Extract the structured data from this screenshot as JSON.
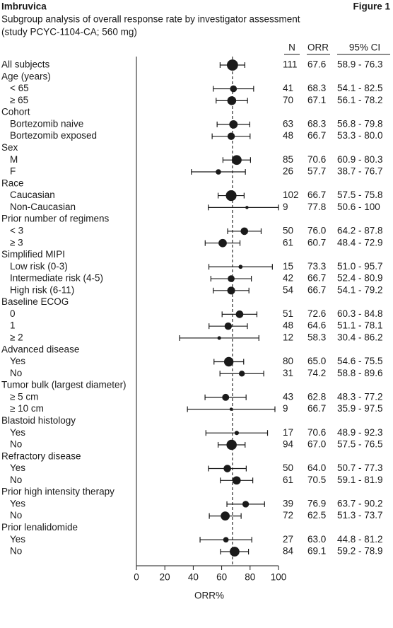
{
  "chart_data": {
    "type": "forest",
    "brand": "Imbruvica",
    "figure_label": "Figure 1",
    "title": "Subgroup analysis of overall response rate by investigator assessment",
    "subtitle": "(study PCYC-1104-CA; 560 mg)",
    "columns": [
      "N",
      "ORR",
      "95% CI"
    ],
    "x_label": "ORR%",
    "xlim": [
      0,
      100
    ],
    "xticks": [
      0,
      20,
      40,
      60,
      80,
      100
    ],
    "reference_line": 67.6,
    "color": "#1a1a1a",
    "categories": [
      "All subjects",
      "Age (years)",
      "< 65",
      "≥ 65",
      "Cohort",
      "Bortezomib naive",
      "Bortezomib exposed",
      "Sex",
      "M",
      "F",
      "Race",
      "Caucasian",
      "Non-Caucasian",
      "Prior number of regimens",
      "< 3",
      "≥ 3",
      "Simplified MIPI",
      "Low risk (0-3)",
      "Intermediate risk (4-5)",
      "High risk (6-11)",
      "Baseline ECOG",
      "0",
      "1",
      "≥ 2",
      "Advanced disease",
      "Yes",
      "No",
      "Tumor bulk (largest diameter)",
      "≥ 5 cm",
      "≥ 10 cm",
      "Blastoid histology",
      "Yes",
      "No",
      "Refractory disease",
      "Yes",
      "No",
      "Prior high intensity therapy",
      "Yes",
      "No",
      "Prior lenalidomide",
      "Yes",
      "No"
    ],
    "n": [
      111,
      null,
      41,
      70,
      null,
      63,
      48,
      null,
      85,
      26,
      null,
      102,
      9,
      null,
      50,
      61,
      null,
      15,
      42,
      54,
      null,
      51,
      48,
      12,
      null,
      80,
      31,
      null,
      43,
      9,
      null,
      17,
      94,
      null,
      50,
      61,
      null,
      39,
      72,
      null,
      27,
      84
    ],
    "values": [
      67.6,
      null,
      68.3,
      67.1,
      null,
      68.3,
      66.7,
      null,
      70.6,
      57.7,
      null,
      66.7,
      77.8,
      null,
      76.0,
      60.7,
      null,
      73.3,
      66.7,
      66.7,
      null,
      72.6,
      64.6,
      58.3,
      null,
      65.0,
      74.2,
      null,
      62.8,
      66.7,
      null,
      70.6,
      67.0,
      null,
      64.0,
      70.5,
      null,
      76.9,
      62.5,
      null,
      63.0,
      69.1
    ],
    "value_labels": [
      "67.6",
      null,
      "68.3",
      "67.1",
      null,
      "68.3",
      "66.7",
      null,
      "70.6",
      "57.7",
      null,
      "66.7",
      "77.8",
      null,
      "76.0",
      "60.7",
      null,
      "73.3",
      "66.7",
      "66.7",
      null,
      "72.6",
      "64.6",
      "58.3",
      null,
      "65.0",
      "74.2",
      null,
      "62.8",
      "66.7",
      null,
      "70.6",
      "67.0",
      null,
      "64.0",
      "70.5",
      null,
      "76.9",
      "62.5",
      null,
      "63.0",
      "69.1"
    ],
    "ci_low": [
      58.9,
      null,
      54.1,
      56.1,
      null,
      56.8,
      53.3,
      null,
      60.9,
      38.7,
      null,
      57.5,
      50.6,
      null,
      64.2,
      48.4,
      null,
      51.0,
      52.4,
      54.1,
      null,
      60.3,
      51.1,
      30.4,
      null,
      54.6,
      58.8,
      null,
      48.3,
      35.9,
      null,
      48.9,
      57.5,
      null,
      50.7,
      59.1,
      null,
      63.7,
      51.3,
      null,
      44.8,
      59.2
    ],
    "ci_high": [
      76.3,
      null,
      82.5,
      78.2,
      null,
      79.8,
      80.0,
      null,
      80.3,
      76.7,
      null,
      75.8,
      100,
      null,
      87.8,
      72.9,
      null,
      95.7,
      80.9,
      79.2,
      null,
      84.8,
      78.1,
      86.2,
      null,
      75.5,
      89.6,
      null,
      77.2,
      97.5,
      null,
      92.3,
      76.5,
      null,
      77.3,
      81.9,
      null,
      90.2,
      73.7,
      null,
      81.2,
      78.9
    ],
    "ci_labels": [
      "58.9 - 76.3",
      null,
      "54.1 - 82.5",
      "56.1 - 78.2",
      null,
      "56.8 - 79.8",
      "53.3 - 80.0",
      null,
      "60.9 - 80.3",
      "38.7 - 76.7",
      null,
      "57.5 - 75.8",
      "50.6 - 100",
      null,
      "64.2 - 87.8",
      "48.4 - 72.9",
      null,
      "51.0 - 95.7",
      "52.4 - 80.9",
      "54.1 - 79.2",
      null,
      "60.3 - 84.8",
      "51.1 - 78.1",
      "30.4 - 86.2",
      null,
      "54.6 - 75.5",
      "58.8 - 89.6",
      null,
      "48.3 - 77.2",
      "35.9 - 97.5",
      null,
      "48.9 - 92.3",
      "57.5 - 76.5",
      null,
      "50.7 - 77.3",
      "59.1 - 81.9",
      null,
      "63.7 - 90.2",
      "51.3 - 73.7",
      null,
      "44.8 - 81.2",
      "59.2 - 78.9"
    ]
  }
}
